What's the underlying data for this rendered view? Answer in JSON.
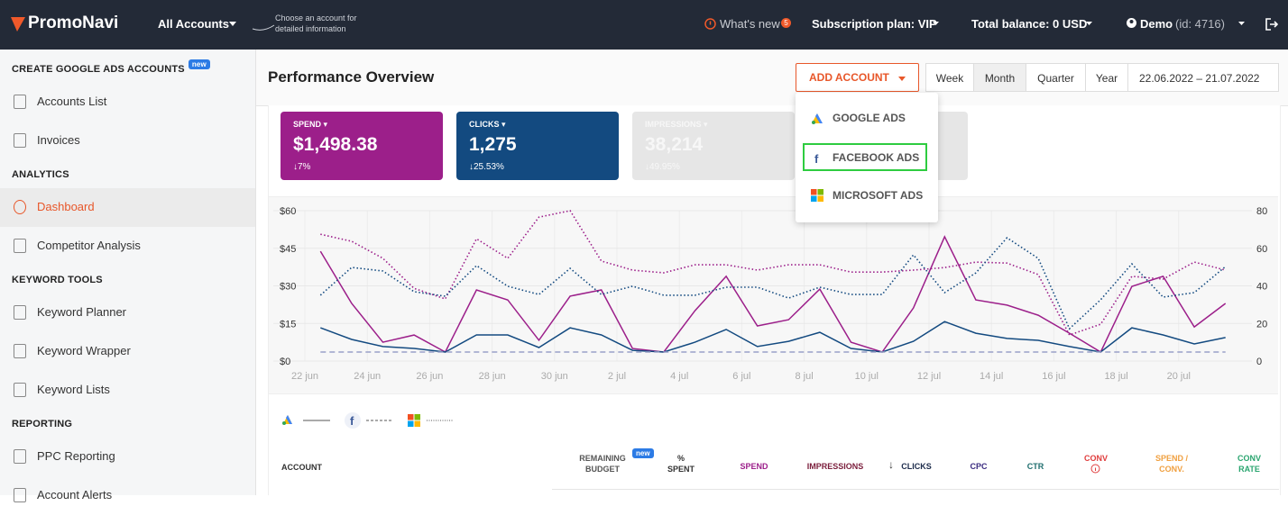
{
  "header": {
    "logo": "PromoNavi",
    "account_selector": "All Accounts",
    "account_hint": "Choose an account for detailed information",
    "whats_new": "What's new",
    "whats_new_count": 5,
    "subscription": "Subscription plan: VIP",
    "balance": "Total balance: 0 USD",
    "user": "Demo",
    "user_id": "(id: 4716)"
  },
  "sidebar": {
    "sections": [
      {
        "title": "CREATE GOOGLE ADS ACCOUNTS",
        "badge": "new",
        "items": [
          "Accounts List",
          "Invoices"
        ]
      },
      {
        "title": "ANALYTICS",
        "items": [
          "Dashboard",
          "Competitor Analysis"
        ]
      },
      {
        "title": "KEYWORD TOOLS",
        "items": [
          "Keyword Planner",
          "Keyword Wrapper",
          "Keyword Lists"
        ]
      },
      {
        "title": "REPORTING",
        "items": [
          "PPC Reporting",
          "Account Alerts"
        ]
      }
    ]
  },
  "toolbar": {
    "title": "Performance Overview",
    "add_account": "ADD ACCOUNT",
    "periods": [
      "Week",
      "Month",
      "Quarter",
      "Year"
    ],
    "date_range": "22.06.2022 – 21.07.2022"
  },
  "dropdown": [
    "GOOGLE ADS",
    "FACEBOOK ADS",
    "MICROSOFT ADS"
  ],
  "cards": [
    {
      "label": "SPEND",
      "value": "$1,498.38",
      "change": "7%"
    },
    {
      "label": "CLICKS",
      "value": "1,275",
      "change": "25.53%"
    },
    {
      "label": "IMPRESSIONS",
      "value": "38,214",
      "change": "49.95%"
    }
  ],
  "chart_data": {
    "type": "line",
    "categories": [
      "22 jun",
      null,
      "24 jun",
      null,
      "26 jun",
      null,
      "28 jun",
      null,
      "30 jun",
      null,
      "2 jul",
      null,
      "4 jul",
      null,
      "6 jul",
      null,
      "8 jul",
      null,
      "10 jul",
      null,
      "12 jul",
      null,
      "14 jul",
      null,
      "16 jul",
      null,
      "18 jul",
      null,
      "20 jul",
      null
    ],
    "ylim": [
      0,
      60
    ],
    "yticks": [
      {
        "value": 0,
        "label": "$0"
      },
      {
        "value": 15,
        "label": "$15"
      },
      {
        "value": 30,
        "label": "$30"
      },
      {
        "value": 45,
        "label": "$45"
      },
      {
        "value": 60,
        "label": "$60"
      }
    ],
    "y2lim": [
      0,
      80
    ],
    "y2ticks": [
      0,
      20,
      40,
      60,
      80
    ],
    "grid": true,
    "series": [
      {
        "color": "#9c1f8a",
        "style": "solid",
        "values": [
          43.8,
          23,
          7.5,
          10.4,
          3.6,
          28.4,
          24.4,
          8.3,
          25.9,
          28.4,
          5,
          3.6,
          20.1,
          33.8,
          14,
          16.5,
          28.7,
          7.5,
          3.6,
          21.2,
          49.6,
          24.4,
          22.3,
          18.3,
          11.1,
          3.6,
          29.8,
          33.8,
          13.6,
          23
        ]
      },
      {
        "color": "#134a80",
        "style": "solid",
        "axis": "y2",
        "values": [
          17.7,
          11.5,
          7.7,
          6.7,
          4.8,
          13.9,
          13.9,
          7.2,
          17.7,
          13.9,
          5.7,
          4.8,
          10,
          16.8,
          7.7,
          10.5,
          15.3,
          6.7,
          4.8,
          10.5,
          21,
          14.8,
          12,
          11,
          7.7,
          4.8,
          17.7,
          13.9,
          9.1,
          12.5
        ]
      },
      {
        "color": "#9c1f8a",
        "style": "dotted",
        "values": [
          50.6,
          47.8,
          41,
          29,
          24.8,
          48.8,
          41,
          57.4,
          60,
          39.9,
          36.3,
          35.2,
          38.4,
          38.4,
          36.3,
          38.4,
          38.4,
          35.5,
          35.5,
          36.3,
          37.3,
          39.5,
          39.1,
          34.5,
          10.4,
          14.7,
          33.8,
          32.7,
          39.5,
          36.3
        ]
      },
      {
        "color": "#134a80",
        "style": "dotted",
        "axis": "y2",
        "values": [
          35,
          49.8,
          47.9,
          36.9,
          34.5,
          50.8,
          39.8,
          35.4,
          49.3,
          35.4,
          39.8,
          35,
          35,
          39.3,
          39.3,
          33.5,
          39.3,
          35.4,
          35.4,
          56.5,
          36.4,
          46.9,
          65.6,
          54.6,
          17.2,
          32.6,
          51.7,
          34,
          36.4,
          50.3
        ]
      },
      {
        "color": "#9aa0c8",
        "style": "dashed",
        "values": [
          3.6,
          3.6,
          3.6,
          3.6,
          3.6,
          3.6,
          3.6,
          3.6,
          3.6,
          3.6,
          3.6,
          3.6,
          3.6,
          3.6,
          3.6,
          3.6,
          3.6,
          3.6,
          3.6,
          3.6,
          3.6,
          3.6,
          3.6,
          3.6,
          3.6,
          3.6,
          3.6,
          3.6,
          3.6,
          3.6
        ]
      }
    ]
  },
  "table": {
    "badge": "new",
    "headers": [
      "ACCOUNT",
      "REMAINING BUDGET",
      "% SPENT",
      "SPEND",
      "IMPRESSIONS",
      "CLICKS",
      "CPC",
      "CTR",
      "CONV",
      "SPEND / CONV.",
      "CONV RATE"
    ]
  }
}
